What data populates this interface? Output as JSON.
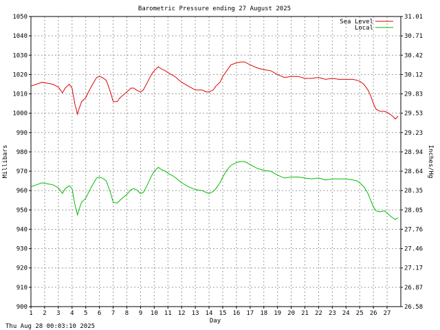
{
  "chart_data": {
    "type": "line",
    "title": "Barometric Pressure ending 27 August 2025",
    "xlabel": "Day",
    "ylabel": "Millibars",
    "y2label": "Inches/Hg",
    "footer": "Thu Aug 28 00:03:10 2025",
    "xlim": [
      1,
      28
    ],
    "ylim": [
      900,
      1050
    ],
    "y2lim": [
      26.58,
      31.01
    ],
    "grid": true,
    "legend_position": "top-right",
    "x_ticks": [
      "1",
      "2",
      "3",
      "4",
      "5",
      "6",
      "7",
      "8",
      "9",
      "10",
      "11",
      "12",
      "13",
      "14",
      "15",
      "16",
      "17",
      "18",
      "19",
      "20",
      "21",
      "22",
      "23",
      "24",
      "25",
      "26",
      "27"
    ],
    "y_ticks": [
      "900",
      "910",
      "920",
      "930",
      "940",
      "950",
      "960",
      "970",
      "980",
      "990",
      "1000",
      "1010",
      "1020",
      "1030",
      "1040",
      "1050"
    ],
    "y2_ticks": [
      "26.58",
      "26.87",
      "27.17",
      "27.46",
      "27.76",
      "28.05",
      "28.35",
      "28.64",
      "28.94",
      "29.23",
      "29.53",
      "29.83",
      "30.12",
      "30.42",
      "30.71",
      "31.01"
    ],
    "series": [
      {
        "name": "Sea Level",
        "color": "#dd0000",
        "x": [
          1,
          1.4,
          1.8,
          2.2,
          2.6,
          3.0,
          3.3,
          3.5,
          3.8,
          4.0,
          4.2,
          4.4,
          4.5,
          4.7,
          5.0,
          5.2,
          5.5,
          5.8,
          6.0,
          6.2,
          6.5,
          6.8,
          7.0,
          7.3,
          7.5,
          8.0,
          8.3,
          8.5,
          8.7,
          9.0,
          9.2,
          9.5,
          9.8,
          10.0,
          10.3,
          10.5,
          10.8,
          11.0,
          11.5,
          12.0,
          12.5,
          13.0,
          13.5,
          13.8,
          14.0,
          14.3,
          14.5,
          14.8,
          15.0,
          15.3,
          15.6,
          16.0,
          16.3,
          16.6,
          17.0,
          17.5,
          18.0,
          18.5,
          19.0,
          19.5,
          20.0,
          20.5,
          21.0,
          21.5,
          22.0,
          22.5,
          23.0,
          23.5,
          24.0,
          24.5,
          24.8,
          25.0,
          25.3,
          25.6,
          25.8,
          26.0,
          26.2,
          26.5,
          26.8,
          27.0,
          27.2,
          27.4,
          27.6,
          27.8
        ],
        "values": [
          1014,
          1015,
          1016,
          1015.5,
          1015,
          1013.5,
          1010.5,
          1013,
          1015,
          1013,
          1005,
          999.5,
          1002,
          1006,
          1008,
          1011,
          1015,
          1018.5,
          1019,
          1018.5,
          1017,
          1011,
          1006,
          1006,
          1008,
          1011,
          1013,
          1013,
          1012,
          1011,
          1012,
          1016,
          1020,
          1022,
          1024,
          1023,
          1022,
          1021,
          1019,
          1016,
          1014,
          1012,
          1012,
          1011,
          1011,
          1012,
          1014,
          1016,
          1019,
          1022,
          1025,
          1026,
          1026.5,
          1026.5,
          1025,
          1023.5,
          1022.5,
          1022,
          1020,
          1018.5,
          1019,
          1019,
          1018,
          1018,
          1018.5,
          1017.5,
          1018,
          1017.5,
          1017.5,
          1017.5,
          1017,
          1016.5,
          1015,
          1012,
          1009,
          1005,
          1002,
          1001,
          1001,
          1000.5,
          999.5,
          998.5,
          997,
          998.5
        ]
      },
      {
        "name": "Local",
        "color": "#00bb00",
        "x": [
          1,
          1.4,
          1.8,
          2.2,
          2.6,
          3.0,
          3.3,
          3.5,
          3.8,
          4.0,
          4.2,
          4.4,
          4.5,
          4.7,
          5.0,
          5.2,
          5.5,
          5.8,
          6.0,
          6.2,
          6.5,
          6.8,
          7.0,
          7.3,
          7.5,
          8.0,
          8.3,
          8.5,
          8.7,
          9.0,
          9.2,
          9.5,
          9.8,
          10.0,
          10.3,
          10.5,
          10.8,
          11.0,
          11.5,
          12.0,
          12.5,
          13.0,
          13.5,
          13.8,
          14.0,
          14.3,
          14.5,
          14.8,
          15.0,
          15.3,
          15.6,
          16.0,
          16.3,
          16.6,
          17.0,
          17.5,
          18.0,
          18.5,
          19.0,
          19.5,
          20.0,
          20.5,
          21.0,
          21.5,
          22.0,
          22.5,
          23.0,
          23.5,
          24.0,
          24.5,
          24.8,
          25.0,
          25.3,
          25.6,
          25.8,
          26.0,
          26.2,
          26.5,
          26.8,
          27.0,
          27.2,
          27.4,
          27.6,
          27.8
        ],
        "values": [
          962,
          963,
          964,
          963.5,
          963,
          961.5,
          958.5,
          961,
          962.5,
          961,
          953,
          947.5,
          950,
          954,
          956,
          959,
          963,
          966.5,
          967,
          966.5,
          965,
          959,
          954,
          953.5,
          955,
          958,
          960.5,
          961,
          960.5,
          958.5,
          959,
          963,
          967.5,
          970,
          972,
          971,
          970,
          969,
          967,
          964,
          962,
          960.5,
          960,
          959,
          958.5,
          959.5,
          961,
          964,
          967,
          970.5,
          973,
          974.5,
          975,
          975,
          973.5,
          971.5,
          970.5,
          970,
          968,
          966.5,
          967,
          967,
          966.5,
          966,
          966.5,
          965.5,
          966,
          966,
          966,
          965.5,
          965,
          964,
          962,
          958.5,
          955,
          951.5,
          949.5,
          949,
          949.5,
          948.5,
          947,
          946,
          945,
          946
        ]
      }
    ]
  }
}
